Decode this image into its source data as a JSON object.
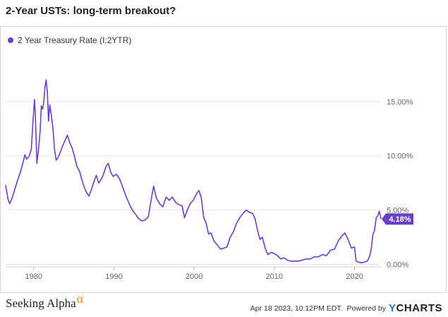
{
  "header": {
    "title": "2-Year USTs: long-term breakout?"
  },
  "legend": {
    "series_label": "2 Year Treasury Rate (I:2YTR)"
  },
  "footer": {
    "brand": "Seeking Alpha",
    "brand_mark": "α",
    "timestamp": "Apr 18 2023, 10:12PM EDT.",
    "powered_by": "Powered by",
    "provider_initial": "Y",
    "provider_rest": "CHARTS"
  },
  "colors": {
    "series": "#6a3fc7",
    "grid": "#e4e4e4",
    "axis_text": "#666666"
  },
  "chart_data": {
    "type": "line",
    "title": "2-Year USTs: long-term breakout?",
    "xlim": [
      1976.5,
      2023.3
    ],
    "ylim": [
      -0.1,
      17.2
    ],
    "x_ticks": [
      1980,
      1990,
      2000,
      2010,
      2020
    ],
    "x_tick_labels": [
      "1980",
      "1990",
      "2000",
      "2010",
      "2020"
    ],
    "y_ticks": [
      0,
      5,
      10,
      15
    ],
    "y_tick_labels": [
      "0.00%",
      "5.00%",
      "10.00%",
      "15.00%"
    ],
    "grid": "horizontal",
    "legend_position": "top-left",
    "last_value_label": "4.18%",
    "series": [
      {
        "name": "2 Year Treasury Rate (I:2YTR)",
        "x": [
          1976.5,
          1976.8,
          1977.0,
          1977.3,
          1977.6,
          1978.0,
          1978.3,
          1978.6,
          1978.9,
          1979.1,
          1979.4,
          1979.7,
          1979.9,
          1980.1,
          1980.2,
          1980.4,
          1980.6,
          1980.8,
          1980.95,
          1981.1,
          1981.25,
          1981.4,
          1981.55,
          1981.7,
          1981.85,
          1982.0,
          1982.2,
          1982.4,
          1982.6,
          1982.8,
          1983.0,
          1983.3,
          1983.6,
          1983.9,
          1984.2,
          1984.5,
          1984.8,
          1985.1,
          1985.4,
          1985.7,
          1986.0,
          1986.3,
          1986.6,
          1986.9,
          1987.2,
          1987.5,
          1987.8,
          1988.1,
          1988.4,
          1988.7,
          1989.0,
          1989.3,
          1989.6,
          1989.9,
          1990.3,
          1990.7,
          1991.1,
          1991.5,
          1991.9,
          1992.3,
          1992.7,
          1993.1,
          1993.5,
          1993.9,
          1994.3,
          1994.7,
          1994.95,
          1995.3,
          1995.7,
          1996.1,
          1996.5,
          1996.9,
          1997.3,
          1997.7,
          1998.1,
          1998.5,
          1998.8,
          1999.1,
          1999.5,
          1999.9,
          2000.3,
          2000.6,
          2000.9,
          2001.2,
          2001.5,
          2001.8,
          2002.1,
          2002.5,
          2002.9,
          2003.3,
          2003.7,
          2004.1,
          2004.5,
          2004.9,
          2005.3,
          2005.7,
          2006.1,
          2006.5,
          2006.9,
          2007.3,
          2007.6,
          2007.9,
          2008.2,
          2008.5,
          2008.9,
          2009.2,
          2009.6,
          2010.0,
          2010.4,
          2010.8,
          2011.2,
          2011.6,
          2012.0,
          2012.5,
          2013.0,
          2013.5,
          2014.0,
          2014.5,
          2015.0,
          2015.5,
          2016.0,
          2016.5,
          2017.0,
          2017.5,
          2018.0,
          2018.4,
          2018.8,
          2019.2,
          2019.6,
          2020.0,
          2020.2,
          2020.5,
          2020.8,
          2021.2,
          2021.6,
          2021.9,
          2022.1,
          2022.3,
          2022.5,
          2022.7,
          2022.9,
          2023.1,
          2023.3
        ],
        "values": [
          7.3,
          6.0,
          5.6,
          6.1,
          6.8,
          7.8,
          8.4,
          9.2,
          10.1,
          9.7,
          9.9,
          10.6,
          13.0,
          15.2,
          13.8,
          9.3,
          10.6,
          12.3,
          14.6,
          14.3,
          14.9,
          16.3,
          17.0,
          15.9,
          13.2,
          14.7,
          13.7,
          12.5,
          10.6,
          9.6,
          9.8,
          10.3,
          10.9,
          11.4,
          11.9,
          11.2,
          10.7,
          9.9,
          9.0,
          8.6,
          7.8,
          7.1,
          6.6,
          6.3,
          6.9,
          7.6,
          8.2,
          7.5,
          7.8,
          8.3,
          9.0,
          9.3,
          8.5,
          8.1,
          8.3,
          7.9,
          7.1,
          6.3,
          5.6,
          5.0,
          4.6,
          4.2,
          4.0,
          4.1,
          4.4,
          6.2,
          7.2,
          6.1,
          5.6,
          5.3,
          6.2,
          5.9,
          6.2,
          5.7,
          5.5,
          5.4,
          4.3,
          4.9,
          5.6,
          5.9,
          6.5,
          6.8,
          6.1,
          4.3,
          3.8,
          2.8,
          2.9,
          2.1,
          1.8,
          1.4,
          1.5,
          1.6,
          2.5,
          3.0,
          3.8,
          4.3,
          4.7,
          5.0,
          4.8,
          4.7,
          4.2,
          3.2,
          2.3,
          2.5,
          1.4,
          0.9,
          1.1,
          1.0,
          0.8,
          0.5,
          0.6,
          0.4,
          0.3,
          0.3,
          0.3,
          0.4,
          0.5,
          0.5,
          0.7,
          0.7,
          0.9,
          0.8,
          1.3,
          1.4,
          2.2,
          2.6,
          2.9,
          2.3,
          1.5,
          1.6,
          0.3,
          0.2,
          0.15,
          0.2,
          0.3,
          0.8,
          1.5,
          2.8,
          3.1,
          4.3,
          4.5,
          4.9,
          4.18
        ]
      }
    ]
  }
}
